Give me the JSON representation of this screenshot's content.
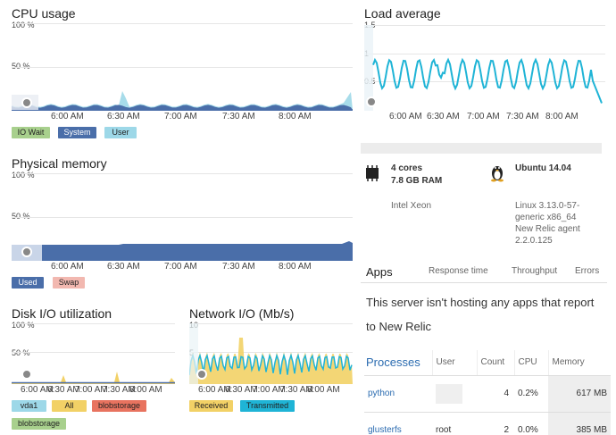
{
  "cpu": {
    "title": "CPU usage",
    "y_top": "100 %",
    "y_mid": "50 %",
    "x_ticks": [
      "6:00 AM",
      "6:30 AM",
      "7:00 AM",
      "7:30 AM",
      "8:00 AM"
    ],
    "legend": [
      {
        "label": "IO Wait",
        "color": "#a8d08d"
      },
      {
        "label": "System",
        "color": "#4a6ea9"
      },
      {
        "label": "User",
        "color": "#9dd8e8"
      }
    ]
  },
  "load": {
    "title": "Load average",
    "y_labels": [
      "1.5",
      "1",
      "0.5"
    ],
    "x_ticks": [
      "6:00 AM",
      "6:30 AM",
      "7:00 AM",
      "7:30 AM",
      "8:00 AM"
    ],
    "color": "#1fb4d6"
  },
  "memory": {
    "title": "Physical memory",
    "y_top": "100 %",
    "y_mid": "50 %",
    "x_ticks": [
      "6:00 AM",
      "6:30 AM",
      "7:00 AM",
      "7:30 AM",
      "8:00 AM"
    ],
    "legend": [
      {
        "label": "Used",
        "color": "#4a6ea9"
      },
      {
        "label": "Swap",
        "color": "#f2b8b0"
      }
    ]
  },
  "disk": {
    "title": "Disk I/O utilization",
    "y_top": "100 %",
    "y_mid": "50 %",
    "x_ticks": [
      "6:00 AM",
      "6:30 AM",
      "7:00 AM",
      "7:30 AM",
      "8:00 AM"
    ],
    "legend": [
      {
        "label": "vda1",
        "color": "#9dd8e8"
      },
      {
        "label": "All",
        "color": "#f2d166"
      },
      {
        "label": "blobstorage",
        "color": "#e8735f"
      },
      {
        "label": "blobstorage",
        "color": "#a8d08d"
      }
    ]
  },
  "network": {
    "title": "Network I/O (Mb/s)",
    "y_top": "10",
    "y_mid": "5",
    "x_ticks": [
      "6:00 AM",
      "6:30 AM",
      "7:00 AM",
      "7:30 AM",
      "8:00 AM"
    ],
    "legend": [
      {
        "label": "Received",
        "color": "#f2d166"
      },
      {
        "label": "Transmitted",
        "color": "#1fb4d6"
      }
    ]
  },
  "server": {
    "cores": "4 cores",
    "ram": "7.8 GB RAM",
    "cpu_model": "Intel Xeon",
    "os": "Ubuntu 14.04",
    "kernel_line1": "Linux 3.13.0-57-",
    "kernel_line2": "generic x86_64",
    "agent_line1": "New Relic agent",
    "agent_line2": "2.2.0.125"
  },
  "apps": {
    "title": "Apps",
    "columns": [
      "Response time",
      "Throughput",
      "Errors"
    ],
    "empty_line1": "This server isn't hosting any apps that report",
    "empty_line2": "to New Relic"
  },
  "processes": {
    "columns": [
      "Processes",
      "User",
      "Count",
      "CPU",
      "Memory"
    ],
    "rows": [
      {
        "name": "python",
        "user": "",
        "count": "4",
        "cpu": "0.2%",
        "memory": "617 MB"
      },
      {
        "name": "glusterfs",
        "user": "root",
        "count": "2",
        "cpu": "0.0%",
        "memory": "385 MB"
      }
    ]
  }
}
